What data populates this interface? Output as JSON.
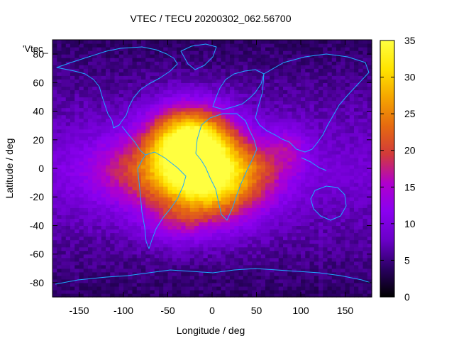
{
  "chart_data": {
    "type": "heatmap",
    "title": "VTEC / TECU 20200302_062.56700",
    "xlabel": "Longitude / deg",
    "ylabel": "Latitude / deg",
    "xlim": [
      -180,
      180
    ],
    "ylim": [
      -90,
      90
    ],
    "x_ticks": [
      -150,
      -100,
      -50,
      0,
      50,
      100,
      150
    ],
    "y_ticks": [
      -80,
      -60,
      -40,
      -20,
      0,
      20,
      40,
      60,
      80
    ],
    "colorbar": {
      "range": [
        0,
        35
      ],
      "ticks": [
        0,
        5,
        10,
        15,
        20,
        25,
        30,
        35
      ]
    },
    "legend_entry": "'Vtec_",
    "colormap": [
      "#000000",
      "#2a0062",
      "#6a00c8",
      "#8a00f0",
      "#b000cc",
      "#d23a3a",
      "#e66a10",
      "#f5a500",
      "#ffe400",
      "#ffff40"
    ],
    "coastline_color": "#1ea9ff",
    "anomalies": [
      {
        "lon": -25,
        "lat": 20,
        "lon_sigma": 32,
        "lat_sigma": 17,
        "amplitude": 26
      },
      {
        "lon": -8,
        "lat": -10,
        "lon_sigma": 42,
        "lat_sigma": 20,
        "amplitude": 23
      },
      {
        "lon": -88,
        "lat": -2,
        "lon_sigma": 45,
        "lat_sigma": 18,
        "amplitude": 8
      },
      {
        "lon": 45,
        "lat": 0,
        "lon_sigma": 35,
        "lat_sigma": 16,
        "amplitude": 6
      },
      {
        "lon": 87,
        "lat": 15,
        "lon_sigma": 15,
        "lat_sigma": 10,
        "amplitude": 5
      },
      {
        "lon": -45,
        "lat": -40,
        "lon_sigma": 25,
        "lat_sigma": 10,
        "amplitude": 4
      }
    ],
    "background_level": 9
  }
}
